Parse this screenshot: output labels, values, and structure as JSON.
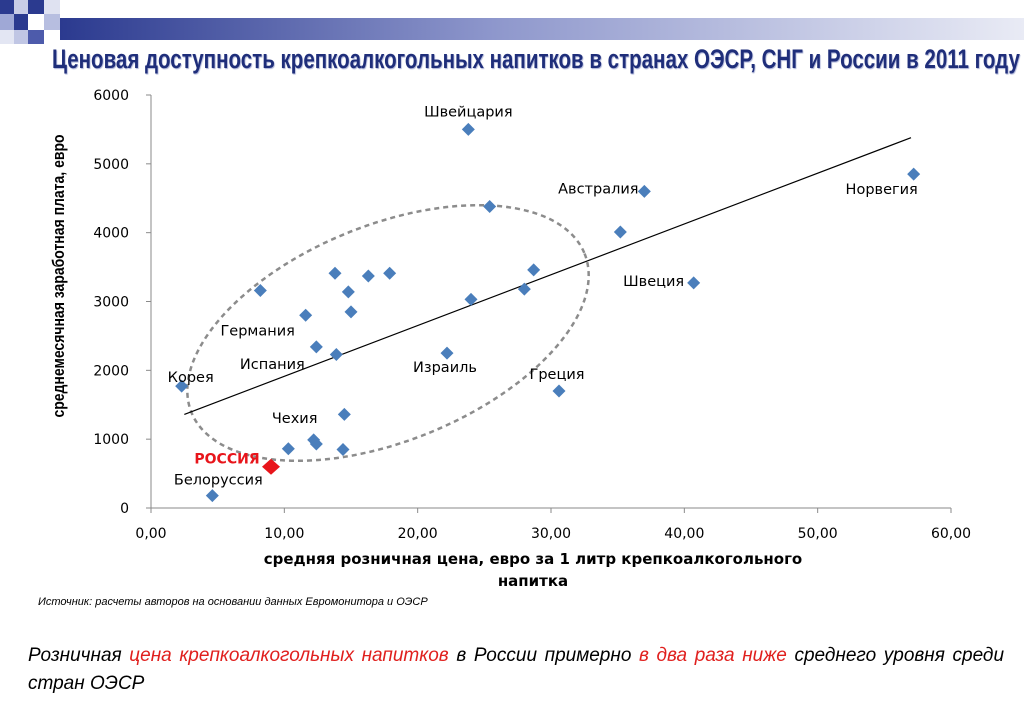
{
  "title": "Ценовая доступность крепкоалкогольных напитков в странах ОЭСР, СНГ и России в 2011 году",
  "colors": {
    "point": "#4a7ebb",
    "russia": "#e8151b",
    "title": "#1f2e7a",
    "highlight": "#e0201e"
  },
  "chart_data": {
    "type": "scatter",
    "xlabel": "средняя розничная цена, евро за 1 литр крепкоалкогольного напитка",
    "ylabel": "среднемесячная заработная плата, евро",
    "xlim": [
      0,
      60
    ],
    "ylim": [
      0,
      6000
    ],
    "x_ticks": [
      "0,00",
      "10,00",
      "20,00",
      "30,00",
      "40,00",
      "50,00",
      "60,00"
    ],
    "y_ticks": [
      "0",
      "1000",
      "2000",
      "3000",
      "4000",
      "5000",
      "6000"
    ],
    "grid": false,
    "points": [
      {
        "x": 23.8,
        "y": 5500,
        "label": "Швейцария"
      },
      {
        "x": 57.2,
        "y": 4850,
        "label": "Норвегия"
      },
      {
        "x": 37.0,
        "y": 4600,
        "label": "Австралия"
      },
      {
        "x": 25.4,
        "y": 4380,
        "label": ""
      },
      {
        "x": 35.2,
        "y": 4010,
        "label": ""
      },
      {
        "x": 28.7,
        "y": 3460,
        "label": ""
      },
      {
        "x": 13.8,
        "y": 3410,
        "label": ""
      },
      {
        "x": 17.9,
        "y": 3410,
        "label": ""
      },
      {
        "x": 16.3,
        "y": 3370,
        "label": ""
      },
      {
        "x": 40.7,
        "y": 3270,
        "label": "Швеция"
      },
      {
        "x": 28.0,
        "y": 3180,
        "label": ""
      },
      {
        "x": 8.2,
        "y": 3160,
        "label": ""
      },
      {
        "x": 14.8,
        "y": 3140,
        "label": ""
      },
      {
        "x": 24.0,
        "y": 3030,
        "label": ""
      },
      {
        "x": 15.0,
        "y": 2850,
        "label": ""
      },
      {
        "x": 11.6,
        "y": 2800,
        "label": "Германия"
      },
      {
        "x": 12.4,
        "y": 2340,
        "label": "Испания"
      },
      {
        "x": 22.2,
        "y": 2250,
        "label": "Израиль"
      },
      {
        "x": 13.9,
        "y": 2230,
        "label": ""
      },
      {
        "x": 2.3,
        "y": 1770,
        "label": "Корея"
      },
      {
        "x": 30.6,
        "y": 1700,
        "label": "Греция"
      },
      {
        "x": 14.5,
        "y": 1360,
        "label": ""
      },
      {
        "x": 12.2,
        "y": 990,
        "label": "Чехия"
      },
      {
        "x": 12.4,
        "y": 930,
        "label": ""
      },
      {
        "x": 10.3,
        "y": 860,
        "label": ""
      },
      {
        "x": 14.4,
        "y": 850,
        "label": ""
      },
      {
        "x": 4.6,
        "y": 180,
        "label": "Белоруссия"
      }
    ],
    "highlight": {
      "x": 9.0,
      "y": 600,
      "label": "РОССИЯ"
    },
    "trendline": [
      [
        2.5,
        1360
      ],
      [
        57.0,
        5380
      ]
    ],
    "ellipse_note": "dashed ellipse encloses the cluster of OECD countries"
  },
  "source": "Источник: расчеты авторов на основании данных Евромонитора  и ОЭСР",
  "conclusion": {
    "p1": "Розничная ",
    "p2": "цена крепкоалкогольных напитков",
    "p3": " в России примерно ",
    "p4": "в два раза ниже",
    "p5": " среднего уровня среди стран ОЭСР"
  }
}
